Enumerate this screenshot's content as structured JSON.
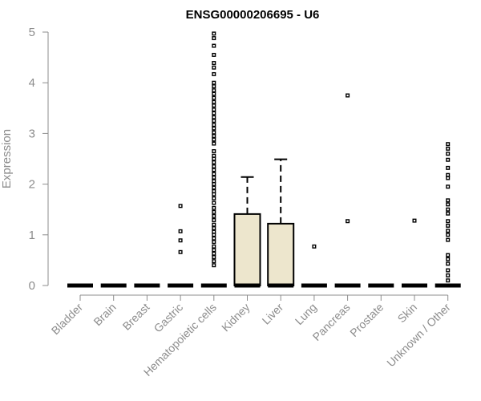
{
  "chart_data": {
    "type": "boxplot",
    "title": "ENSG00000206695 - U6",
    "ylabel": "Expression",
    "xlabel": "",
    "ylim": [
      0,
      5
    ],
    "yticks": [
      0,
      1,
      2,
      3,
      4,
      5
    ],
    "grid": false,
    "legend": "none",
    "colors": {
      "box_fill": "#ede6cd",
      "axis": "#8c8c8c",
      "mark": "#000000"
    },
    "categories": [
      "Bladder",
      "Brain",
      "Breast",
      "Gastric",
      "Hematopoietic cells",
      "Kidney",
      "Liver",
      "Lung",
      "Pancreas",
      "Prostate",
      "Skin",
      "Unknown / Other"
    ],
    "boxes": [
      {
        "category": "Bladder",
        "q1": 0,
        "median": 0,
        "q3": 0,
        "whisker_high": 0,
        "outliers": []
      },
      {
        "category": "Brain",
        "q1": 0,
        "median": 0,
        "q3": 0,
        "whisker_high": 0,
        "outliers": []
      },
      {
        "category": "Breast",
        "q1": 0,
        "median": 0,
        "q3": 0,
        "whisker_high": 0,
        "outliers": []
      },
      {
        "category": "Gastric",
        "q1": 0,
        "median": 0,
        "q3": 0,
        "whisker_high": 0,
        "outliers": [
          0.66,
          0.89,
          1.07,
          1.57
        ]
      },
      {
        "category": "Hematopoietic cells",
        "q1": 0,
        "median": 0,
        "q3": 0,
        "whisker_high": 0,
        "outliers": [
          0.4,
          0.48,
          0.56,
          0.63,
          0.7,
          0.77,
          0.86,
          0.93,
          1.0,
          1.06,
          1.13,
          1.2,
          1.29,
          1.37,
          1.45,
          1.53,
          1.63,
          1.72,
          1.8,
          1.86,
          1.93,
          2.0,
          2.06,
          2.13,
          2.2,
          2.28,
          2.35,
          2.43,
          2.5,
          2.56,
          2.65,
          2.8,
          2.88,
          2.95,
          3.02,
          3.1,
          3.17,
          3.25,
          3.32,
          3.4,
          3.47,
          3.55,
          3.62,
          3.7,
          3.78,
          3.85,
          3.93,
          4.0,
          4.17,
          4.3,
          4.39,
          4.55,
          4.73,
          4.88,
          4.97
        ]
      },
      {
        "category": "Kidney",
        "q1": 0,
        "median": 0,
        "q3": 1.41,
        "whisker_high": 2.14,
        "outliers": []
      },
      {
        "category": "Liver",
        "q1": 0,
        "median": 0,
        "q3": 1.22,
        "whisker_high": 2.49,
        "outliers": []
      },
      {
        "category": "Lung",
        "q1": 0,
        "median": 0,
        "q3": 0,
        "whisker_high": 0,
        "outliers": [
          0.77
        ]
      },
      {
        "category": "Pancreas",
        "q1": 0,
        "median": 0,
        "q3": 0,
        "whisker_high": 0,
        "outliers": [
          1.27,
          3.75
        ]
      },
      {
        "category": "Prostate",
        "q1": 0,
        "median": 0,
        "q3": 0,
        "whisker_high": 0,
        "outliers": []
      },
      {
        "category": "Skin",
        "q1": 0,
        "median": 0,
        "q3": 0,
        "whisker_high": 0,
        "outliers": [
          1.28
        ]
      },
      {
        "category": "Unknown / Other",
        "q1": 0,
        "median": 0,
        "q3": 0,
        "whisker_high": 0,
        "outliers": [
          0.1,
          0.2,
          0.3,
          0.43,
          0.52,
          0.6,
          0.9,
          1.0,
          1.08,
          1.18,
          1.27,
          1.42,
          1.5,
          1.6,
          1.68,
          1.95,
          2.12,
          2.18,
          2.32,
          2.48,
          2.6,
          2.7,
          2.79
        ]
      }
    ]
  }
}
